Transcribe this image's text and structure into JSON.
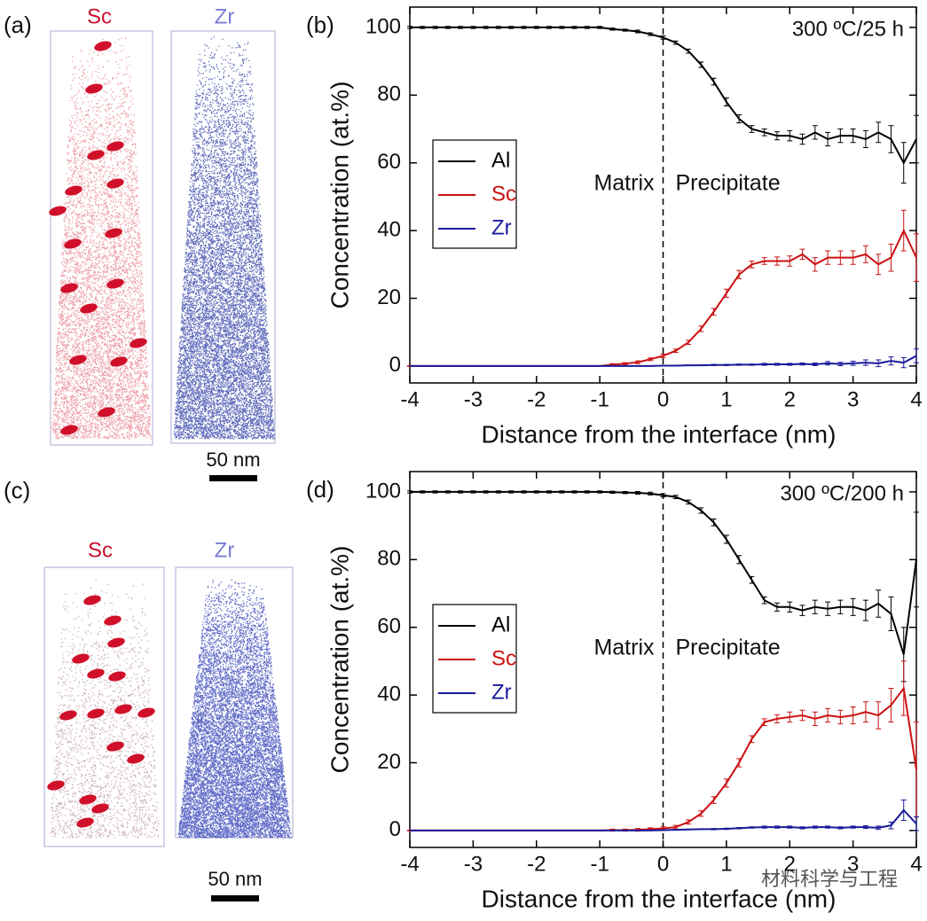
{
  "panels": [
    {
      "label": "(a)",
      "images": [
        {
          "label": "Sc"
        },
        {
          "label": "Zr"
        }
      ],
      "scale_bar": "50 nm"
    },
    {
      "label": "(c)",
      "images": [
        {
          "label": "Sc"
        },
        {
          "label": "Zr"
        }
      ],
      "scale_bar": "50 nm"
    }
  ],
  "watermark": "材料科学与工程",
  "chart_data": [
    {
      "type": "line",
      "panel_label": "(b)",
      "annotation": "300 ºC/25 h",
      "region_labels": [
        "Matrix",
        "Precipitate"
      ],
      "xlabel": "Distance from the interface (nm)",
      "ylabel": "Concentration (at.%)",
      "xlim": [
        -4,
        4
      ],
      "ylim": [
        -5,
        106
      ],
      "xticks": [
        -4,
        -3,
        -2,
        -1,
        0,
        1,
        2,
        3,
        4
      ],
      "yticks": [
        0,
        20,
        40,
        60,
        80,
        100
      ],
      "legend": "center left",
      "x": [
        -4,
        -3.8,
        -3.6,
        -3.4,
        -3.2,
        -3,
        -2.8,
        -2.6,
        -2.4,
        -2.2,
        -2,
        -1.8,
        -1.6,
        -1.4,
        -1.2,
        -1,
        -0.8,
        -0.6,
        -0.4,
        -0.2,
        0,
        0.2,
        0.4,
        0.6,
        0.8,
        1,
        1.2,
        1.4,
        1.6,
        1.8,
        2,
        2.2,
        2.4,
        2.6,
        2.8,
        3,
        3.2,
        3.4,
        3.6,
        3.8,
        4
      ],
      "series": [
        {
          "name": "Al",
          "color": "#000000",
          "values": [
            100,
            100,
            100,
            100,
            100,
            100,
            100,
            100,
            100,
            100,
            100,
            100,
            100,
            100,
            100,
            100,
            99.5,
            99.2,
            98.8,
            98,
            97,
            95.5,
            93,
            89,
            84,
            78,
            73,
            70,
            69,
            68,
            68,
            67,
            69,
            67,
            68,
            68,
            67,
            69,
            67,
            60,
            67
          ],
          "errors": [
            0.3,
            0.3,
            0.3,
            0.3,
            0.3,
            0.3,
            0.3,
            0.3,
            0.3,
            0.3,
            0.3,
            0.3,
            0.3,
            0.3,
            0.3,
            0.3,
            0.3,
            0.3,
            0.4,
            0.4,
            0.5,
            0.5,
            0.6,
            0.8,
            1,
            1.2,
            1.2,
            1,
            1,
            1.2,
            1.5,
            1.5,
            2,
            2,
            2,
            2,
            2.5,
            3,
            4,
            6,
            7
          ]
        },
        {
          "name": "Sc",
          "color": "#cc1010",
          "values": [
            0,
            0,
            0,
            0,
            0,
            0,
            0,
            0,
            0,
            0,
            0,
            0,
            0,
            0,
            0,
            0,
            0.4,
            0.7,
            1.1,
            2,
            3,
            4.5,
            7,
            11,
            16,
            21.5,
            27,
            30,
            31,
            31,
            31,
            33,
            30,
            32,
            32,
            32,
            33,
            30,
            32,
            40,
            32
          ],
          "errors": [
            0.1,
            0.1,
            0.1,
            0.1,
            0.1,
            0.1,
            0.1,
            0.1,
            0.1,
            0.1,
            0.1,
            0.1,
            0.1,
            0.1,
            0.1,
            0.1,
            0.3,
            0.3,
            0.4,
            0.4,
            0.5,
            0.5,
            0.6,
            0.8,
            1,
            1.2,
            1.2,
            1,
            1,
            1.2,
            1.5,
            1.5,
            2,
            2,
            2,
            2,
            2.5,
            3,
            4,
            6,
            7
          ]
        },
        {
          "name": "Zr",
          "color": "#1a1a9a",
          "values": [
            0,
            0,
            0,
            0,
            0,
            0,
            0,
            0,
            0,
            0,
            0,
            0,
            0,
            0,
            0,
            0,
            0,
            0,
            0,
            0,
            0.1,
            0.1,
            0.2,
            0.2,
            0.3,
            0.3,
            0.4,
            0.4,
            0.5,
            0.5,
            0.5,
            0.6,
            0.5,
            0.8,
            0.6,
            0.8,
            1,
            0.8,
            1.5,
            1,
            3
          ],
          "errors": [
            0,
            0,
            0,
            0,
            0,
            0,
            0,
            0,
            0,
            0,
            0,
            0,
            0,
            0,
            0,
            0,
            0,
            0,
            0,
            0,
            0.1,
            0.1,
            0.1,
            0.1,
            0.2,
            0.2,
            0.2,
            0.2,
            0.3,
            0.3,
            0.3,
            0.3,
            0.4,
            0.5,
            0.5,
            0.6,
            0.8,
            1,
            1.2,
            1.5,
            2
          ]
        }
      ]
    },
    {
      "type": "line",
      "panel_label": "(d)",
      "annotation": "300 ºC/200 h",
      "region_labels": [
        "Matrix",
        "Precipitate"
      ],
      "xlabel": "Distance from the interface (nm)",
      "ylabel": "Concentration (at.%)",
      "xlim": [
        -4,
        4
      ],
      "ylim": [
        -5,
        106
      ],
      "xticks": [
        -4,
        -3,
        -2,
        -1,
        0,
        1,
        2,
        3,
        4
      ],
      "yticks": [
        0,
        20,
        40,
        60,
        80,
        100
      ],
      "legend": "center left",
      "x": [
        -4,
        -3.8,
        -3.6,
        -3.4,
        -3.2,
        -3,
        -2.8,
        -2.6,
        -2.4,
        -2.2,
        -2,
        -1.8,
        -1.6,
        -1.4,
        -1.2,
        -1,
        -0.8,
        -0.6,
        -0.4,
        -0.2,
        0,
        0.2,
        0.4,
        0.6,
        0.8,
        1,
        1.2,
        1.4,
        1.6,
        1.8,
        2,
        2.2,
        2.4,
        2.6,
        2.8,
        3,
        3.2,
        3.4,
        3.6,
        3.8,
        4
      ],
      "series": [
        {
          "name": "Al",
          "color": "#000000",
          "values": [
            100,
            100,
            100,
            100,
            100,
            100,
            100,
            100,
            100,
            100,
            100,
            100,
            100,
            100,
            100,
            100,
            99.9,
            99.8,
            99.7,
            99.5,
            99,
            98.5,
            97,
            94.5,
            91,
            86,
            80,
            74,
            68,
            66,
            66,
            65,
            66,
            65.5,
            66,
            66,
            65,
            67,
            64,
            52,
            80
          ],
          "errors": [
            0.3,
            0.3,
            0.3,
            0.3,
            0.3,
            0.3,
            0.3,
            0.3,
            0.3,
            0.3,
            0.3,
            0.3,
            0.3,
            0.3,
            0.3,
            0.3,
            0.3,
            0.3,
            0.4,
            0.4,
            0.5,
            0.5,
            0.6,
            0.8,
            1,
            1.2,
            1.2,
            1,
            1,
            1.2,
            1.5,
            1.5,
            2,
            2,
            2,
            2.5,
            3,
            4,
            5,
            8,
            14
          ]
        },
        {
          "name": "Sc",
          "color": "#cc1010",
          "values": [
            0,
            0,
            0,
            0,
            0,
            0,
            0,
            0,
            0,
            0,
            0,
            0,
            0,
            0,
            0,
            0,
            0.1,
            0.1,
            0.2,
            0.4,
            0.6,
            1,
            2.5,
            5,
            9,
            14,
            20,
            27,
            32,
            33,
            33.5,
            34,
            33,
            34,
            33.5,
            34,
            35,
            34,
            37,
            42,
            18
          ],
          "errors": [
            0.1,
            0.1,
            0.1,
            0.1,
            0.1,
            0.1,
            0.1,
            0.1,
            0.1,
            0.1,
            0.1,
            0.1,
            0.1,
            0.1,
            0.1,
            0.1,
            0.3,
            0.3,
            0.4,
            0.4,
            0.5,
            0.5,
            0.6,
            0.8,
            1,
            1.2,
            1.2,
            1,
            1,
            1.2,
            1.5,
            1.5,
            2,
            2,
            2,
            2.5,
            3,
            4,
            5,
            8,
            14
          ]
        },
        {
          "name": "Zr",
          "color": "#1a1a9a",
          "values": [
            0,
            0,
            0,
            0,
            0,
            0,
            0,
            0,
            0,
            0,
            0,
            0,
            0,
            0,
            0,
            0,
            0,
            0,
            0,
            0,
            0.1,
            0.2,
            0.3,
            0.4,
            0.4,
            0.5,
            0.7,
            0.9,
            1,
            1,
            1,
            0.8,
            1,
            1,
            0.8,
            1,
            1,
            0.8,
            1.5,
            6,
            2
          ],
          "errors": [
            0,
            0,
            0,
            0,
            0,
            0,
            0,
            0,
            0,
            0,
            0,
            0,
            0,
            0,
            0,
            0,
            0,
            0,
            0,
            0,
            0.1,
            0.1,
            0.1,
            0.1,
            0.2,
            0.2,
            0.2,
            0.2,
            0.3,
            0.3,
            0.3,
            0.3,
            0.3,
            0.3,
            0.3,
            0.3,
            0.4,
            0.5,
            1,
            3,
            2
          ]
        }
      ]
    }
  ]
}
